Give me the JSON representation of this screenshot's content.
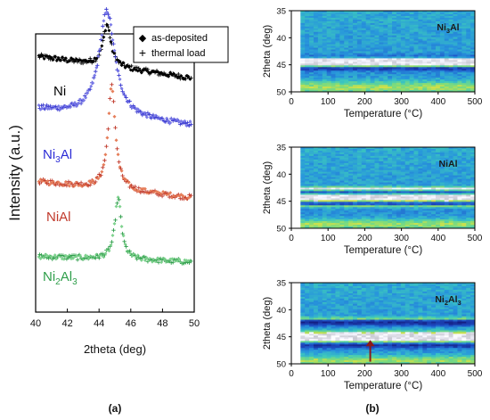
{
  "chart_data": [
    {
      "type": "scatter",
      "panel_label": "(a)",
      "xlabel": "2theta (deg)",
      "ylabel": "Intensity (a.u.)",
      "xlim": [
        40,
        50
      ],
      "xticks": [
        "40",
        "42",
        "44",
        "46",
        "48",
        "50"
      ],
      "legend": {
        "placement": "top-right",
        "entries": [
          {
            "marker": "◆",
            "label": "as-deposited"
          },
          {
            "marker": "+",
            "label": "thermal load"
          }
        ]
      },
      "series": [
        {
          "label": "Ni",
          "label_color": "#000000",
          "color": "#000000",
          "baseline": 0.88,
          "peak_x": 44.5,
          "peak_height": 0.15,
          "width": 0.3,
          "slope": -0.04
        },
        {
          "label": "Ni3Al",
          "label_color": "#2b2bd6",
          "color": "#3a3ad0",
          "color2": "#7b7be8",
          "baseline": 0.7,
          "peak_x": 44.5,
          "peak_height": 0.38,
          "width": 0.6,
          "slope": -0.03
        },
        {
          "label": "NiAl",
          "label_color": "#c0392b",
          "color": "#c0392b",
          "color2": "#e67e5a",
          "baseline": 0.44,
          "peak_x": 44.8,
          "peak_height": 0.37,
          "width": 0.28,
          "slope": -0.03
        },
        {
          "label": "Ni2Al3",
          "label_color": "#2e9e4a",
          "color": "#2e9e4a",
          "color2": "#7fd28f",
          "baseline": 0.19,
          "peak_x": 45.2,
          "peak_height": 0.22,
          "width": 0.25,
          "slope": -0.01
        }
      ],
      "series_labels": {
        "Ni": {
          "main": "Ni",
          "sub": ""
        },
        "Ni3Al": {
          "main": "Ni",
          "sub": "3",
          "tail": "Al"
        },
        "NiAl": {
          "main": "NiAl",
          "sub": ""
        },
        "Ni2Al3": {
          "main": "Ni",
          "sub": "2",
          "tail": "Al",
          "sub2": "3"
        }
      }
    },
    {
      "type": "heatmap",
      "panel_label": "(b)",
      "xlabel": "Temperature (°C)",
      "ylabel": "2theta (deg)",
      "xlim": [
        0,
        500
      ],
      "ylim": [
        35,
        50
      ],
      "xticks": [
        "0",
        "100",
        "200",
        "300",
        "400",
        "500"
      ],
      "yticks": [
        "35",
        "40",
        "45",
        "50"
      ],
      "data_start_x": 25,
      "panels": [
        {
          "label": "Ni3Al",
          "label_parts": {
            "main": "Ni",
            "sub": "3",
            "tail": "Al"
          },
          "bright_bands": [
            [
              44.4,
              0.8,
              0.95
            ]
          ],
          "dark_bands": [
            [
              43.6,
              0.5
            ],
            [
              45.6,
              0.5
            ]
          ],
          "yellow_bands": [
            [
              45.0,
              0.35
            ],
            [
              49.2,
              1.2
            ]
          ]
        },
        {
          "label": "NiAl",
          "label_parts": {
            "main": "NiAl"
          },
          "bright_bands": [
            [
              44.3,
              0.7,
              0.95
            ],
            [
              42.7,
              0.35,
              0.6
            ]
          ],
          "dark_bands": [
            [
              43.4,
              0.4
            ],
            [
              45.5,
              0.4
            ]
          ],
          "yellow_bands": [
            [
              45.9,
              0.3
            ],
            [
              49.3,
              1.0
            ]
          ]
        },
        {
          "label": "Ni2Al3",
          "label_parts": {
            "main": "Ni",
            "sub": "2",
            "tail": "Al",
            "sub2": "3"
          },
          "bright_bands": [
            [
              45.1,
              0.9,
              1.0
            ]
          ],
          "dark_bands": [
            [
              42.4,
              0.6
            ],
            [
              46.5,
              0.6
            ]
          ],
          "yellow_bands": [
            [
              41.6,
              0.25
            ],
            [
              49.4,
              1.0
            ]
          ],
          "arrow": {
            "x": 215,
            "from_y": 49.6,
            "to_y": 45.6
          }
        }
      ]
    }
  ]
}
